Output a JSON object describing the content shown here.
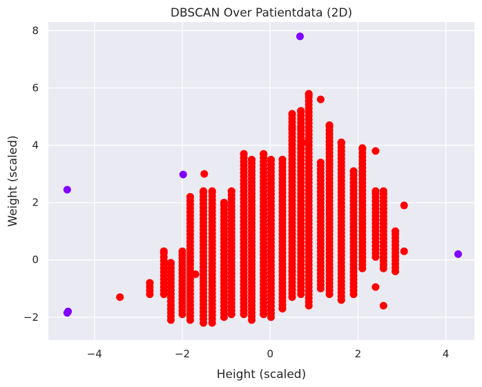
{
  "chart_data": {
    "type": "scatter",
    "title": "DBSCAN Over Patientdata (2D)",
    "xlabel": "Height (scaled)",
    "ylabel": "Weight (scaled)",
    "xlim": [
      -5.05,
      4.65
    ],
    "ylim": [
      -2.8,
      8.3
    ],
    "xticks": [
      -4,
      -2,
      0,
      2,
      4
    ],
    "xtick_labels": [
      "−4",
      "−2",
      "0",
      "2",
      "4"
    ],
    "yticks": [
      -2,
      0,
      2,
      4,
      6,
      8
    ],
    "ytick_labels": [
      "−2",
      "0",
      "2",
      "4",
      "6",
      "8"
    ],
    "grid": true,
    "background_color": "#eaeaf2",
    "series": [
      {
        "color": "#ff0000",
        "columns": [
          {
            "x": -2.74,
            "ymin": -1.2,
            "ymax": -0.8
          },
          {
            "x": -2.42,
            "ymin": -1.2,
            "ymax": 0.3
          },
          {
            "x": -2.26,
            "ymin": -2.1,
            "ymax": -0.1
          },
          {
            "x": -2.0,
            "ymin": -1.9,
            "ymax": 0.3
          },
          {
            "x": -1.82,
            "ymin": -2.1,
            "ymax": 2.2
          },
          {
            "x": -1.52,
            "ymin": -2.2,
            "ymax": 2.4
          },
          {
            "x": -1.32,
            "ymin": -2.2,
            "ymax": 2.4
          },
          {
            "x": -1.05,
            "ymin": -2.0,
            "ymax": 2.0
          },
          {
            "x": -0.88,
            "ymin": -1.9,
            "ymax": 2.4
          },
          {
            "x": -0.6,
            "ymin": -1.9,
            "ymax": 3.7
          },
          {
            "x": -0.42,
            "ymin": -2.1,
            "ymax": 3.5
          },
          {
            "x": -0.15,
            "ymin": -1.9,
            "ymax": 3.7
          },
          {
            "x": 0.02,
            "ymin": -2.0,
            "ymax": 3.5
          },
          {
            "x": 0.28,
            "ymin": -1.7,
            "ymax": 3.5
          },
          {
            "x": 0.5,
            "ymin": -1.3,
            "ymax": 5.1
          },
          {
            "x": 0.7,
            "ymin": -1.2,
            "ymax": 5.2
          },
          {
            "x": 0.88,
            "ymin": -1.6,
            "ymax": 5.8
          },
          {
            "x": 1.15,
            "ymin": -1.0,
            "ymax": 3.4
          },
          {
            "x": 1.35,
            "ymin": -1.2,
            "ymax": 4.7
          },
          {
            "x": 1.62,
            "ymin": -1.4,
            "ymax": 4.1
          },
          {
            "x": 1.9,
            "ymin": -1.2,
            "ymax": 3.1
          },
          {
            "x": 2.1,
            "ymin": -0.3,
            "ymax": 3.9
          },
          {
            "x": 2.4,
            "ymin": 0.1,
            "ymax": 2.4
          },
          {
            "x": 2.58,
            "ymin": -0.3,
            "ymax": 2.4
          },
          {
            "x": 2.85,
            "ymin": -0.4,
            "ymax": 1.0
          }
        ],
        "points": [
          [
            -3.42,
            -1.3
          ],
          [
            -1.7,
            -0.5
          ],
          [
            -1.5,
            3.0
          ],
          [
            0.5,
            4.6
          ],
          [
            0.7,
            4.6
          ],
          [
            0.85,
            4.1
          ],
          [
            1.15,
            5.6
          ],
          [
            0.7,
            5.2
          ],
          [
            0.88,
            5.75
          ],
          [
            1.35,
            4.7
          ],
          [
            2.4,
            3.8
          ],
          [
            3.05,
            1.9
          ],
          [
            3.05,
            0.3
          ],
          [
            2.58,
            -1.6
          ],
          [
            2.4,
            -0.95
          ],
          [
            1.62,
            -1.4
          ],
          [
            0.5,
            -0.4
          ],
          [
            0.28,
            -1.7
          ],
          [
            -0.15,
            -1.9
          ],
          [
            -0.88,
            -1.9
          ],
          [
            -1.82,
            2.2
          ],
          [
            -2.42,
            0.3
          ],
          [
            2.1,
            3.9
          ],
          [
            1.62,
            4.1
          ],
          [
            0.7,
            3.9
          ]
        ]
      },
      {
        "color": "#8000ff",
        "points": [
          [
            0.68,
            7.8
          ],
          [
            -4.62,
            2.45
          ],
          [
            -1.98,
            2.98
          ],
          [
            -4.62,
            -1.85
          ],
          [
            -4.6,
            -1.8
          ],
          [
            4.28,
            0.2
          ]
        ]
      }
    ]
  }
}
